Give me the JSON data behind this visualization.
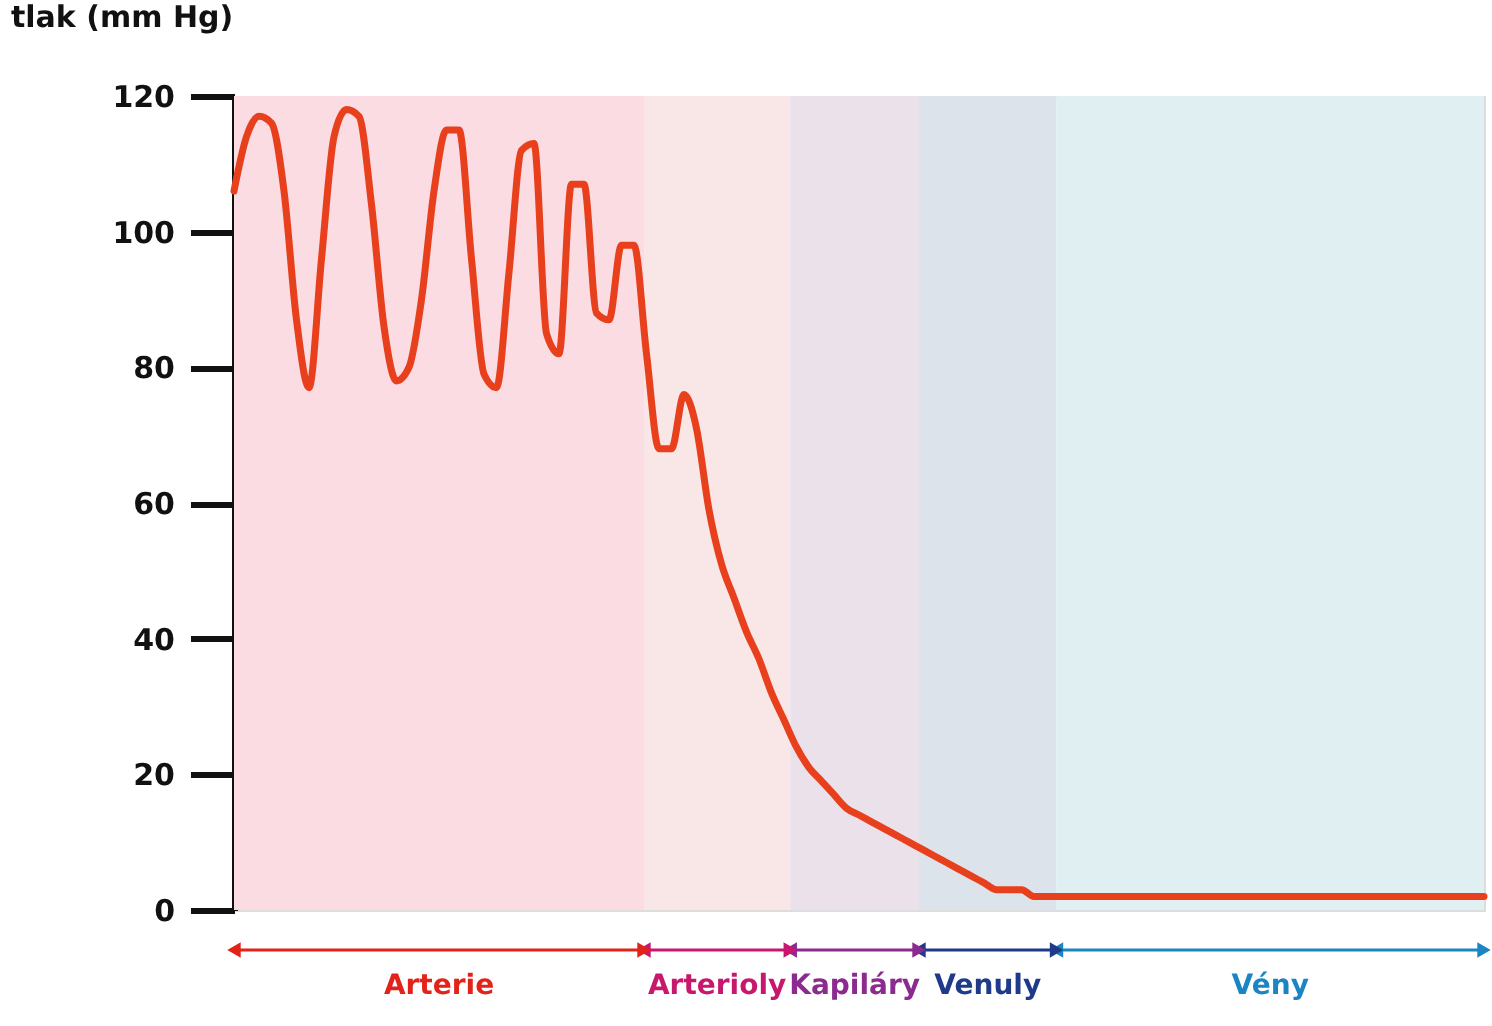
{
  "chart_data": {
    "type": "line",
    "ylabel": "tlak (mm Hg)",
    "categories": [
      null,
      null,
      null,
      null,
      null,
      null,
      null,
      null,
      null,
      null,
      null,
      null,
      null,
      null,
      null,
      null,
      null,
      null,
      null,
      null,
      null,
      null,
      null,
      null,
      null,
      null,
      null,
      null,
      null,
      null,
      null,
      null,
      null,
      null,
      null,
      null,
      null,
      null,
      null,
      null,
      null,
      null,
      null,
      null,
      null,
      null,
      null,
      null,
      null,
      null,
      null,
      null,
      null,
      null,
      null,
      null,
      null,
      null,
      null,
      null,
      null,
      null,
      null,
      null,
      null,
      null,
      null,
      null,
      null,
      null,
      null,
      null,
      null,
      null,
      null,
      null,
      null,
      null,
      null,
      null,
      null,
      null,
      null,
      null,
      null,
      null,
      null,
      null,
      null,
      null,
      null,
      null,
      null,
      null,
      null,
      null,
      null,
      null,
      null,
      null,
      null
    ],
    "series": [
      {
        "color": "#e8401c",
        "values": [
          106,
          114,
          117,
          116,
          106,
          87,
          77,
          96,
          114,
          118,
          117,
          104,
          86,
          78,
          80,
          90,
          106,
          115,
          115,
          96,
          79,
          77,
          94,
          112,
          113,
          85,
          82,
          107,
          107,
          88,
          87,
          98,
          98,
          82,
          68,
          68,
          76,
          71,
          59,
          51,
          46,
          41,
          37,
          32,
          28,
          24,
          21,
          19,
          17,
          15,
          14,
          13,
          12,
          11,
          10,
          9,
          8,
          7,
          6,
          5,
          4,
          3,
          3,
          3,
          2,
          2,
          2,
          2,
          2,
          2,
          2,
          2,
          2,
          2,
          2,
          2,
          2,
          2,
          2,
          2,
          2,
          2,
          2,
          2,
          2,
          2,
          2,
          2,
          2,
          2,
          2,
          2,
          2,
          2,
          2,
          2,
          2,
          2,
          2,
          2,
          2
        ]
      }
    ],
    "ylim": [
      0,
      120
    ],
    "yticks": [
      0,
      20,
      40,
      60,
      80,
      100,
      120
    ],
    "tick_labels": "y",
    "grid": false,
    "annotations": [
      "Arterie",
      "Arterioly",
      "Kapiláry",
      "Venuly",
      "Vény"
    ]
  }
}
